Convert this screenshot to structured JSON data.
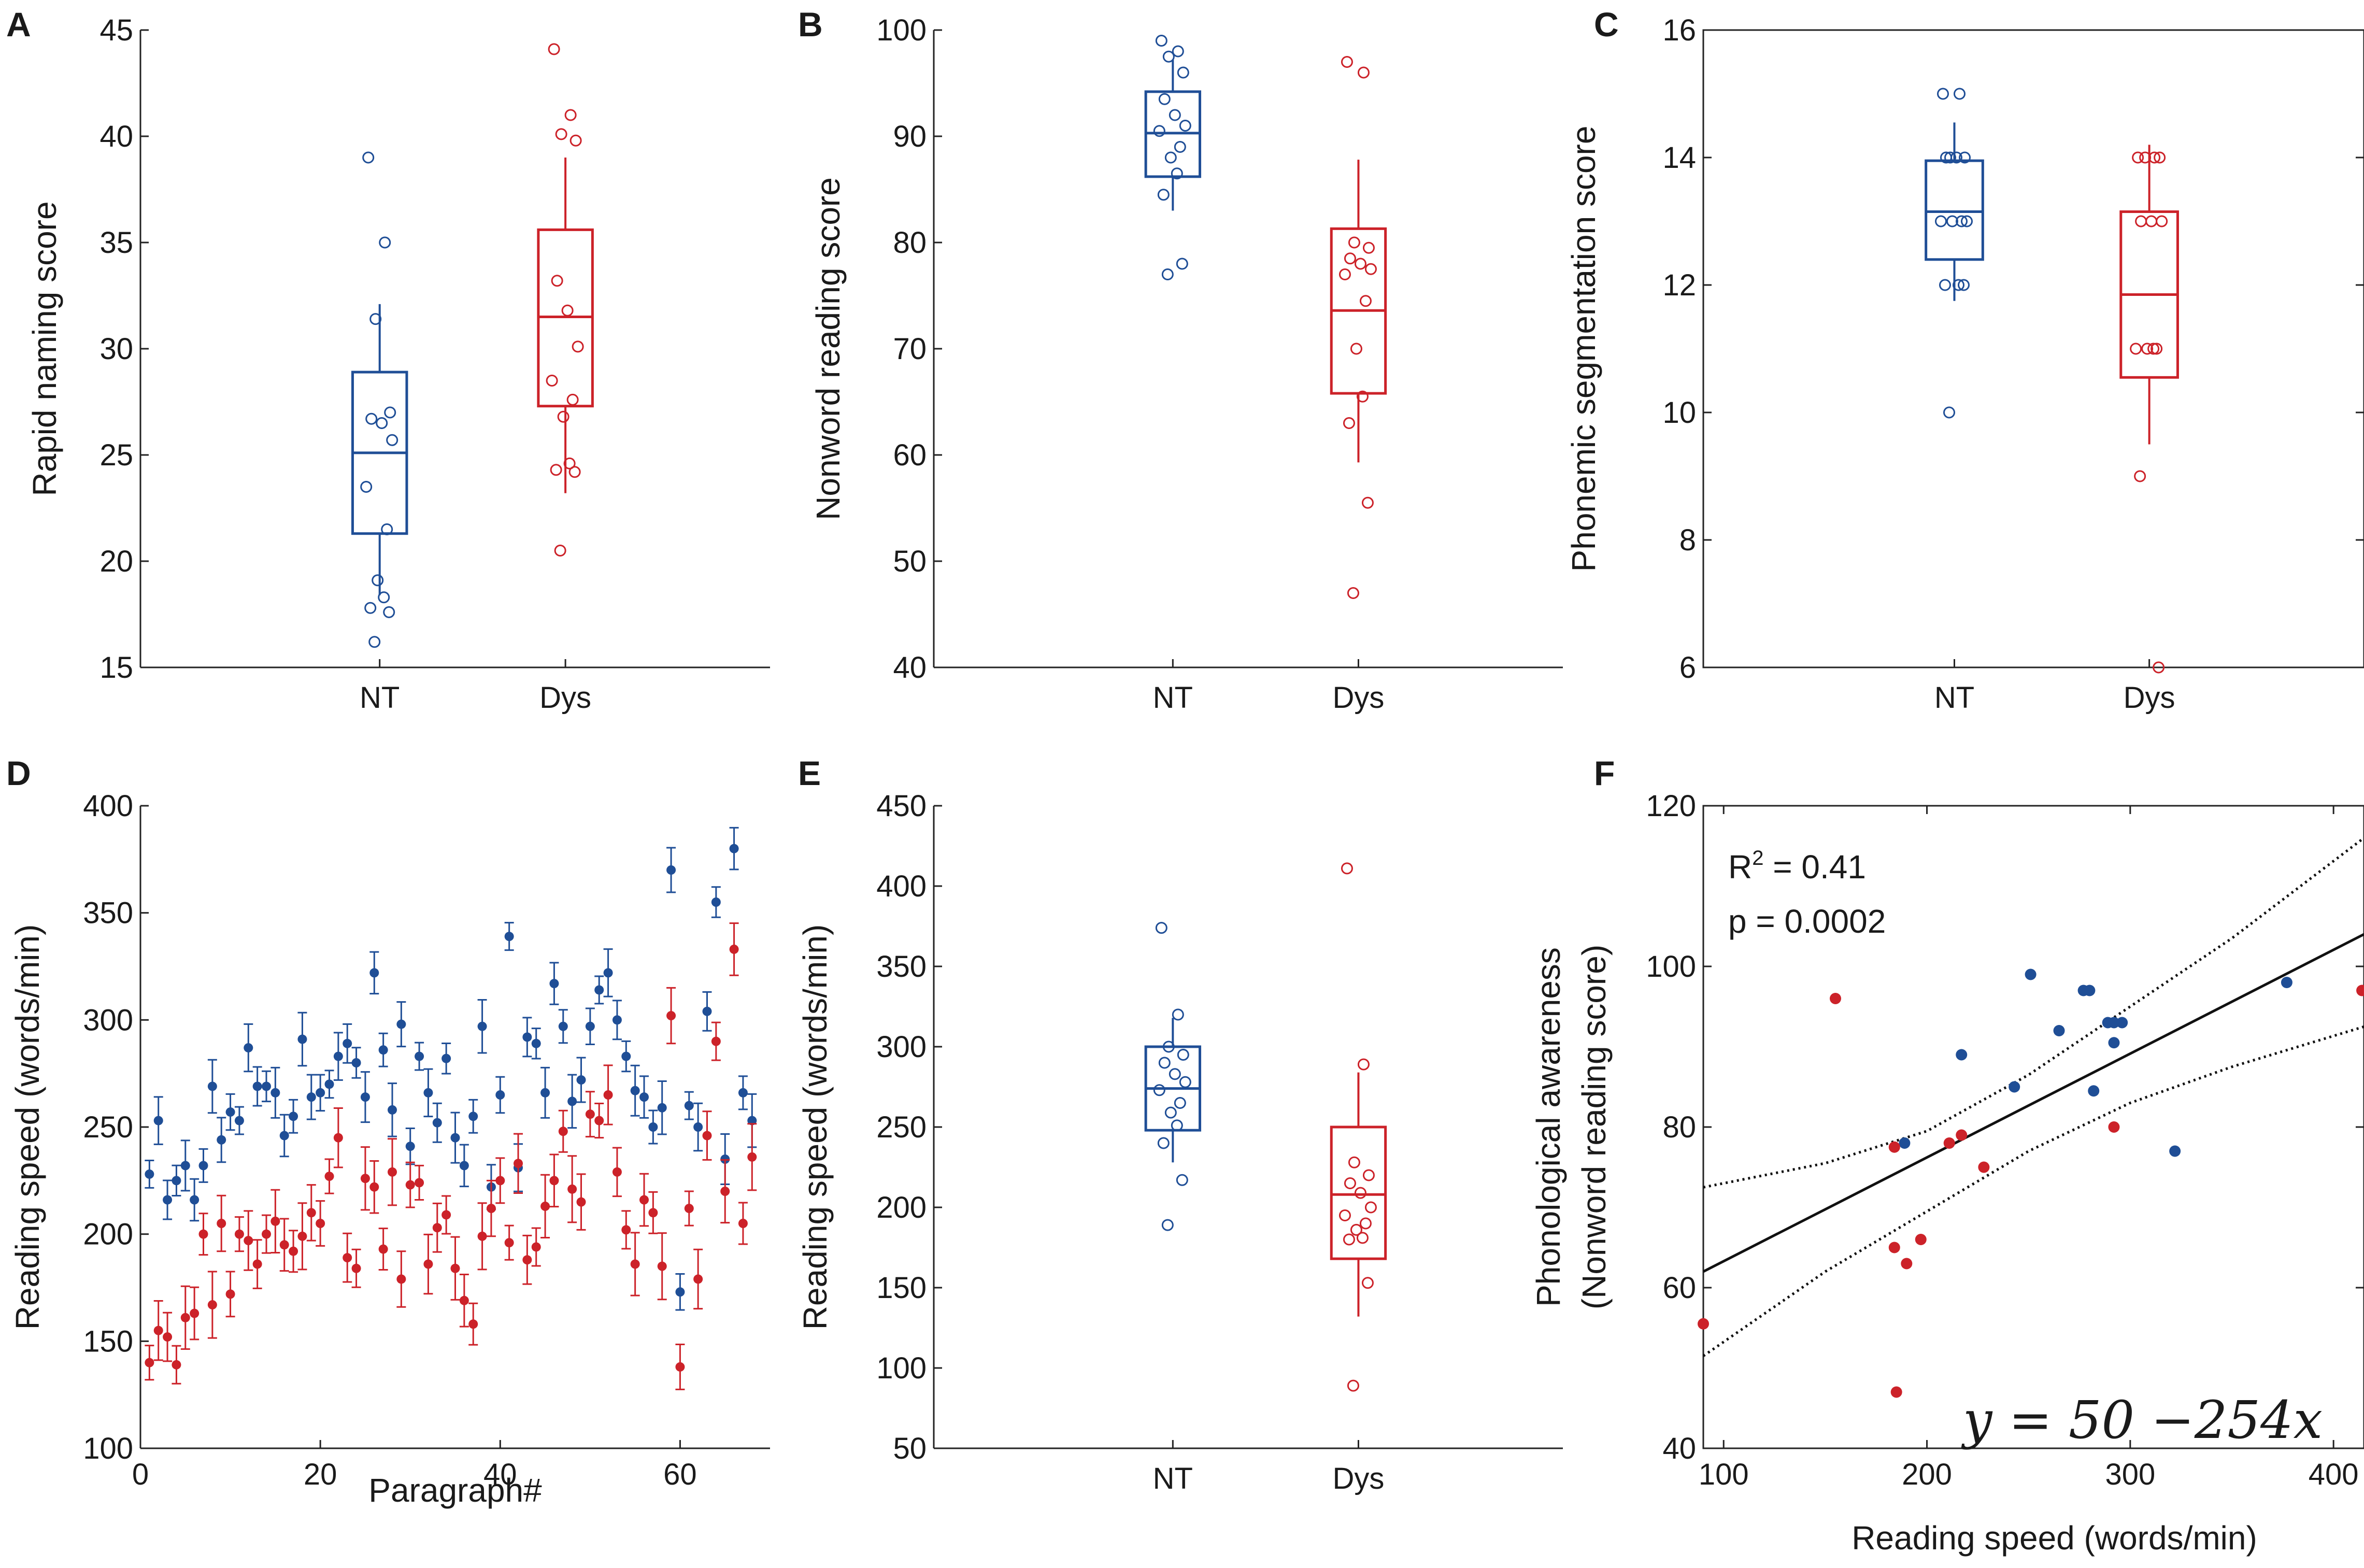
{
  "colors": {
    "nt": "#1f4e96",
    "dys": "#cc2229"
  },
  "chart_data": [
    {
      "panel": "A",
      "type": "box",
      "categories": [
        "NT",
        "Dys"
      ],
      "ylabel": "Rapid naming score",
      "xlabel": "",
      "ylim": [
        15,
        45
      ],
      "yticks": [
        "15",
        "20",
        "25",
        "30",
        "35",
        "40",
        "45"
      ],
      "series": [
        {
          "name": "NT",
          "color": "#1f4e96",
          "q1": 21.3,
          "median": 25.1,
          "q3": 28.9,
          "whisker_low": 18.4,
          "whisker_high": 32.1,
          "points": [
            39,
            35,
            31.4,
            27,
            26.7,
            26.5,
            25.7,
            23.5,
            21.5,
            19.1,
            18.3,
            17.8,
            17.6,
            16.2
          ]
        },
        {
          "name": "Dys",
          "color": "#cc2229",
          "q1": 27.3,
          "median": 31.5,
          "q3": 35.6,
          "whisker_low": 23.2,
          "whisker_high": 39,
          "points": [
            44.1,
            41,
            40.1,
            39.8,
            33.2,
            31.8,
            30.1,
            28.5,
            27.6,
            26.8,
            24.6,
            24.3,
            24.2,
            20.5
          ]
        }
      ]
    },
    {
      "panel": "B",
      "type": "box",
      "categories": [
        "NT",
        "Dys"
      ],
      "ylabel": "Nonword reading score",
      "xlabel": "",
      "ylim": [
        40,
        100
      ],
      "yticks": [
        "40",
        "50",
        "60",
        "70",
        "80",
        "90",
        "100"
      ],
      "series": [
        {
          "name": "NT",
          "color": "#1f4e96",
          "q1": 86.2,
          "median": 90.3,
          "q3": 94.2,
          "whisker_low": 83,
          "whisker_high": 97.2,
          "points": [
            99,
            98,
            97.5,
            96,
            93.5,
            92,
            91,
            90.5,
            89,
            88,
            86.5,
            84.5,
            78,
            77
          ]
        },
        {
          "name": "Dys",
          "color": "#cc2229",
          "q1": 65.8,
          "median": 73.6,
          "q3": 81.3,
          "whisker_low": 59.3,
          "whisker_high": 87.8,
          "points": [
            97,
            96,
            80,
            79.5,
            78.5,
            78,
            77.5,
            77,
            74.5,
            70,
            65.5,
            63,
            55.5,
            47
          ]
        }
      ]
    },
    {
      "panel": "C",
      "type": "box",
      "categories": [
        "NT",
        "Dys"
      ],
      "ylabel": "Phonemic segmentation score",
      "xlabel": "",
      "ylim": [
        6,
        16
      ],
      "yticks": [
        "6",
        "8",
        "10",
        "12",
        "14",
        "16"
      ],
      "series": [
        {
          "name": "NT",
          "color": "#1f4e96",
          "q1": 12.4,
          "median": 13.15,
          "q3": 13.95,
          "whisker_low": 11.75,
          "whisker_high": 14.55,
          "points": [
            15,
            15,
            14,
            14,
            14,
            14,
            13,
            13,
            13,
            13,
            12,
            12,
            12,
            10
          ]
        },
        {
          "name": "Dys",
          "color": "#cc2229",
          "q1": 10.55,
          "median": 11.85,
          "q3": 13.15,
          "whisker_low": 9.5,
          "whisker_high": 14.2,
          "points": [
            14,
            14,
            14,
            14,
            13,
            13,
            13,
            11,
            11,
            11,
            11,
            9,
            6
          ]
        }
      ]
    },
    {
      "panel": "D",
      "type": "scatter-errorbar",
      "xlabel": "Paragraph#",
      "ylabel": "Reading speed (words/min)",
      "xlim": [
        0,
        70
      ],
      "ylim": [
        100,
        400
      ],
      "xticks": [
        "0",
        "20",
        "40",
        "60"
      ],
      "yticks": [
        "100",
        "150",
        "200",
        "250",
        "300",
        "350",
        "400"
      ],
      "series": [
        {
          "name": "NT",
          "color": "#1f4e96",
          "err": 8,
          "x": [
            1,
            2,
            3,
            4,
            5,
            6,
            7,
            8,
            9,
            10,
            11,
            12,
            13,
            14,
            15,
            16,
            17,
            18,
            19,
            20,
            21,
            22,
            23,
            24,
            25,
            26,
            27,
            28,
            29,
            30,
            31,
            32,
            33,
            34,
            35,
            36,
            37,
            38,
            39,
            40,
            41,
            42,
            43,
            44,
            45,
            46,
            47,
            48,
            49,
            50,
            51,
            52,
            53,
            54,
            55,
            56,
            57,
            58,
            59,
            60,
            61,
            62,
            63,
            64,
            65,
            66,
            67,
            68
          ],
          "y": [
            228,
            253,
            216,
            225,
            232,
            216,
            232,
            269,
            244,
            257,
            253,
            287,
            269,
            269,
            266,
            246,
            255,
            291,
            264,
            266,
            270,
            283,
            289,
            280,
            264,
            322,
            286,
            258,
            298,
            241,
            283,
            266,
            252,
            282,
            245,
            232,
            255,
            297,
            222,
            265,
            339,
            231,
            292,
            289,
            266,
            317,
            297,
            262,
            272,
            297,
            314,
            322,
            300,
            283,
            267,
            264,
            250,
            259,
            370,
            173,
            260,
            250,
            304,
            355,
            235,
            380,
            266,
            253
          ]
        },
        {
          "name": "Dys",
          "color": "#cc2229",
          "err": 10,
          "x": [
            1,
            2,
            3,
            4,
            5,
            6,
            7,
            8,
            9,
            10,
            11,
            12,
            13,
            14,
            15,
            16,
            17,
            18,
            19,
            20,
            21,
            22,
            23,
            24,
            25,
            26,
            27,
            28,
            29,
            30,
            31,
            32,
            33,
            34,
            35,
            36,
            37,
            38,
            39,
            40,
            41,
            42,
            43,
            44,
            45,
            46,
            47,
            48,
            49,
            50,
            51,
            52,
            53,
            54,
            55,
            56,
            57,
            58,
            59,
            60,
            61,
            62,
            63,
            64,
            65,
            66,
            67,
            68
          ],
          "y": [
            140,
            155,
            152,
            139,
            161,
            163,
            200,
            167,
            205,
            172,
            200,
            197,
            186,
            200,
            206,
            195,
            192,
            199,
            210,
            205,
            227,
            245,
            189,
            184,
            226,
            222,
            193,
            229,
            179,
            223,
            224,
            186,
            203,
            209,
            184,
            169,
            158,
            199,
            212,
            225,
            196,
            233,
            188,
            194,
            213,
            225,
            248,
            221,
            215,
            256,
            253,
            265,
            229,
            202,
            186,
            216,
            210,
            185,
            302,
            138,
            212,
            179,
            246,
            290,
            220,
            333,
            205,
            236
          ]
        }
      ]
    },
    {
      "panel": "E",
      "type": "box",
      "categories": [
        "NT",
        "Dys"
      ],
      "ylabel": "Reading speed (words/min)",
      "xlabel": "",
      "ylim": [
        50,
        450
      ],
      "yticks": [
        "50",
        "100",
        "150",
        "200",
        "250",
        "300",
        "350",
        "400",
        "450"
      ],
      "series": [
        {
          "name": "NT",
          "color": "#1f4e96",
          "q1": 248,
          "median": 274,
          "q3": 300,
          "whisker_low": 228,
          "whisker_high": 318,
          "points": [
            374,
            320,
            300,
            295,
            290,
            283,
            278,
            273,
            265,
            259,
            251,
            240,
            217,
            189
          ]
        },
        {
          "name": "Dys",
          "color": "#cc2229",
          "q1": 168,
          "median": 208,
          "q3": 250,
          "whisker_low": 132,
          "whisker_high": 284,
          "points": [
            411,
            289,
            228,
            220,
            215,
            209,
            200,
            195,
            190,
            186,
            181,
            180,
            153,
            89
          ]
        }
      ]
    },
    {
      "panel": "F",
      "type": "scatter",
      "xlabel": "Reading speed (words/min)",
      "ylabel_lines": [
        "Phonological awareness",
        "(Nonword reading score)"
      ],
      "xlim": [
        90,
        415
      ],
      "ylim": [
        40,
        120
      ],
      "xticks": [
        "100",
        "200",
        "300",
        "400"
      ],
      "yticks": [
        "40",
        "60",
        "80",
        "100",
        "120"
      ],
      "series": [
        {
          "name": "NT",
          "color": "#1f4e96",
          "x": [
            189,
            217,
            243,
            251,
            265,
            277,
            280,
            282,
            289,
            292,
            292,
            296,
            322,
            377
          ],
          "y": [
            78,
            89,
            85,
            99,
            92,
            97,
            97,
            84.5,
            93,
            90.5,
            93,
            93,
            77,
            98
          ]
        },
        {
          "name": "Dys",
          "color": "#cc2229",
          "x": [
            90,
            155,
            184,
            184,
            185,
            190,
            197,
            211,
            217,
            228,
            292,
            414
          ],
          "y": [
            55.5,
            96,
            77.5,
            65,
            47,
            63,
            66,
            78,
            79,
            75,
            80,
            97
          ]
        }
      ],
      "fit": {
        "x": [
          90,
          415
        ],
        "y": [
          62,
          104
        ]
      },
      "ci_upper": {
        "x": [
          90,
          150,
          200,
          250,
          300,
          350,
          415
        ],
        "y": [
          72.5,
          75.5,
          79.5,
          86.5,
          95,
          103.5,
          116
        ]
      },
      "ci_lower": {
        "x": [
          90,
          150,
          200,
          250,
          300,
          350,
          415
        ],
        "y": [
          51.5,
          62,
          69.5,
          77,
          83,
          87.5,
          92.5
        ]
      },
      "stats": {
        "r2_label": "R",
        "r2_sup": "2",
        "r2_value": " = 0.41",
        "p_text": "p  = 0.0002"
      },
      "equation": "y = 50  −254x"
    }
  ]
}
